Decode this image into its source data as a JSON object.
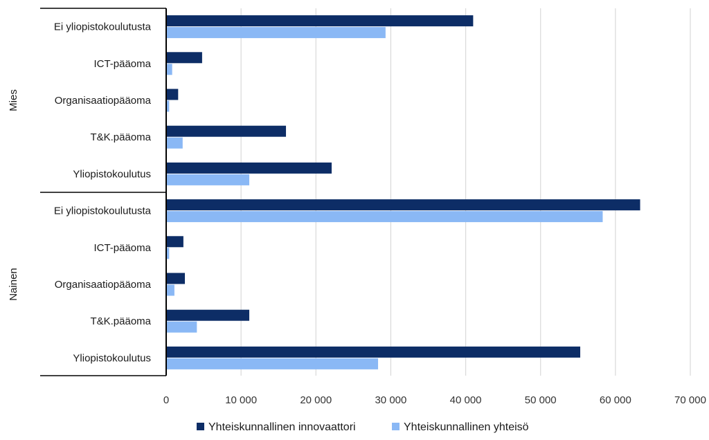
{
  "colors": {
    "series_dark": "#0d2d66",
    "series_light": "#8ab8f5",
    "gridline": "#d9d9d9",
    "axis": "#000000"
  },
  "chart_data": {
    "type": "bar",
    "orientation": "horizontal",
    "title": "",
    "xlabel": "",
    "ylabel": "",
    "xlim": [
      0,
      70000
    ],
    "x_ticks": [
      0,
      10000,
      20000,
      30000,
      40000,
      50000,
      60000,
      70000
    ],
    "x_tick_labels": [
      "0",
      "10 000",
      "20 000",
      "30 000",
      "40 000",
      "50 000",
      "60 000",
      "70 000"
    ],
    "grid": "vertical",
    "legend_position": "bottom",
    "groups": [
      {
        "label": "Mies",
        "categories": [
          "Ei yliopistokoulutusta",
          "ICT-pääoma",
          "Organisaatiopääoma",
          "T&K.pääoma",
          "Yliopistokoulutus"
        ]
      },
      {
        "label": "Nainen",
        "categories": [
          "Ei yliopistokoulutusta",
          "ICT-pääoma",
          "Organisaatiopääoma",
          "T&K.pääoma",
          "Yliopistokoulutus"
        ]
      }
    ],
    "series": [
      {
        "name": "Yhteiskunnallinen innovaattori",
        "color": "#0d2d66",
        "values": [
          41000,
          4800,
          1600,
          16000,
          22100,
          63300,
          2300,
          2500,
          11100,
          55300
        ]
      },
      {
        "name": "Yhteiskunnallinen yhteisö",
        "color": "#8ab8f5",
        "values": [
          29300,
          800,
          400,
          2200,
          11100,
          58300,
          400,
          1100,
          4100,
          28300
        ]
      }
    ]
  }
}
